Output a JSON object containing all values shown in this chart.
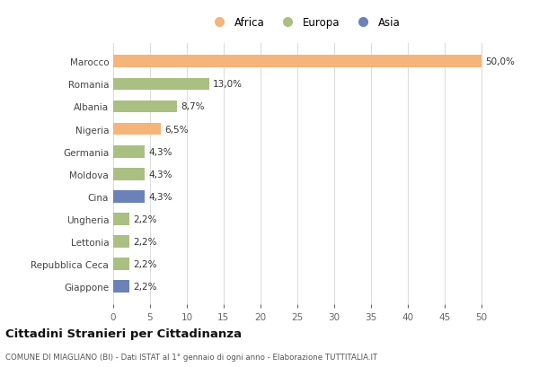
{
  "countries": [
    "Marocco",
    "Romania",
    "Albania",
    "Nigeria",
    "Germania",
    "Moldova",
    "Cina",
    "Ungheria",
    "Lettonia",
    "Repubblica Ceca",
    "Giappone"
  ],
  "values": [
    50.0,
    13.0,
    8.7,
    6.5,
    4.3,
    4.3,
    4.3,
    2.2,
    2.2,
    2.2,
    2.2
  ],
  "labels": [
    "50,0%",
    "13,0%",
    "8,7%",
    "6,5%",
    "4,3%",
    "4,3%",
    "4,3%",
    "2,2%",
    "2,2%",
    "2,2%",
    "2,2%"
  ],
  "continents": [
    "Africa",
    "Europa",
    "Europa",
    "Africa",
    "Europa",
    "Europa",
    "Asia",
    "Europa",
    "Europa",
    "Europa",
    "Asia"
  ],
  "colors": {
    "Africa": "#F5B47A",
    "Europa": "#AABF82",
    "Asia": "#6B82B8"
  },
  "xlim": [
    0,
    52
  ],
  "xticks": [
    0,
    5,
    10,
    15,
    20,
    25,
    30,
    35,
    40,
    45,
    50
  ],
  "title": "Cittadini Stranieri per Cittadinanza",
  "subtitle": "COMUNE DI MIAGLIANO (BI) - Dati ISTAT al 1° gennaio di ogni anno - Elaborazione TUTTITALIA.IT",
  "bg_color": "#ffffff",
  "grid_color": "#dddddd",
  "bar_height": 0.55
}
